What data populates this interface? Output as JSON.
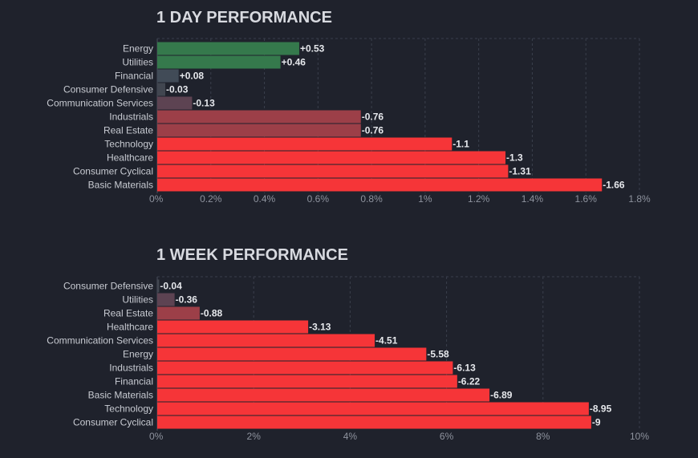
{
  "chart_data": [
    {
      "type": "bar",
      "orientation": "horizontal",
      "title": "1 DAY PERFORMANCE",
      "categories": [
        "Energy",
        "Utilities",
        "Financial",
        "Consumer Defensive",
        "Communication Services",
        "Industrials",
        "Real Estate",
        "Technology",
        "Healthcare",
        "Consumer Cyclical",
        "Basic Materials"
      ],
      "values": [
        0.53,
        0.46,
        0.08,
        -0.03,
        -0.13,
        -0.76,
        -0.76,
        -1.1,
        -1.3,
        -1.31,
        -1.66
      ],
      "value_labels": [
        "+0.53",
        "+0.46",
        "+0.08",
        "-0.03",
        "-0.13",
        "-0.76",
        "-0.76",
        "-1.1",
        "-1.3",
        "-1.31",
        "-1.66"
      ],
      "xlim": [
        0,
        1.8
      ],
      "xticks": [
        0,
        0.2,
        0.4,
        0.6,
        0.8,
        1,
        1.2,
        1.4,
        1.6,
        1.8
      ],
      "xtick_labels": [
        "0%",
        "0.2%",
        "0.4%",
        "0.6%",
        "0.8%",
        "1%",
        "1.2%",
        "1.4%",
        "1.6%",
        "1.8%"
      ],
      "xlabel": "",
      "ylabel": "",
      "grid": true
    },
    {
      "type": "bar",
      "orientation": "horizontal",
      "title": "1 WEEK PERFORMANCE",
      "categories": [
        "Consumer Defensive",
        "Utilities",
        "Real Estate",
        "Healthcare",
        "Communication Services",
        "Energy",
        "Industrials",
        "Financial",
        "Basic Materials",
        "Technology",
        "Consumer Cyclical"
      ],
      "values": [
        -0.04,
        -0.36,
        -0.88,
        -3.13,
        -4.51,
        -5.58,
        -6.13,
        -6.22,
        -6.89,
        -8.95,
        -9
      ],
      "value_labels": [
        "-0.04",
        "-0.36",
        "-0.88",
        "-3.13",
        "-4.51",
        "-5.58",
        "-6.13",
        "-6.22",
        "-6.89",
        "-8.95",
        "-9"
      ],
      "xlim": [
        0,
        10
      ],
      "xticks": [
        0,
        2,
        4,
        6,
        8,
        10
      ],
      "xtick_labels": [
        "0%",
        "2%",
        "4%",
        "6%",
        "8%",
        "10%"
      ],
      "xlabel": "",
      "ylabel": "",
      "grid": true
    }
  ],
  "colors": {
    "background": "#1f222c",
    "positive_strong": "#35794c",
    "positive_weak": "#414b57",
    "negative_weak": "#414650",
    "negative_mild": "#5d4352",
    "negative_medium": "#9c3f48",
    "negative_strong": "#f63538"
  }
}
